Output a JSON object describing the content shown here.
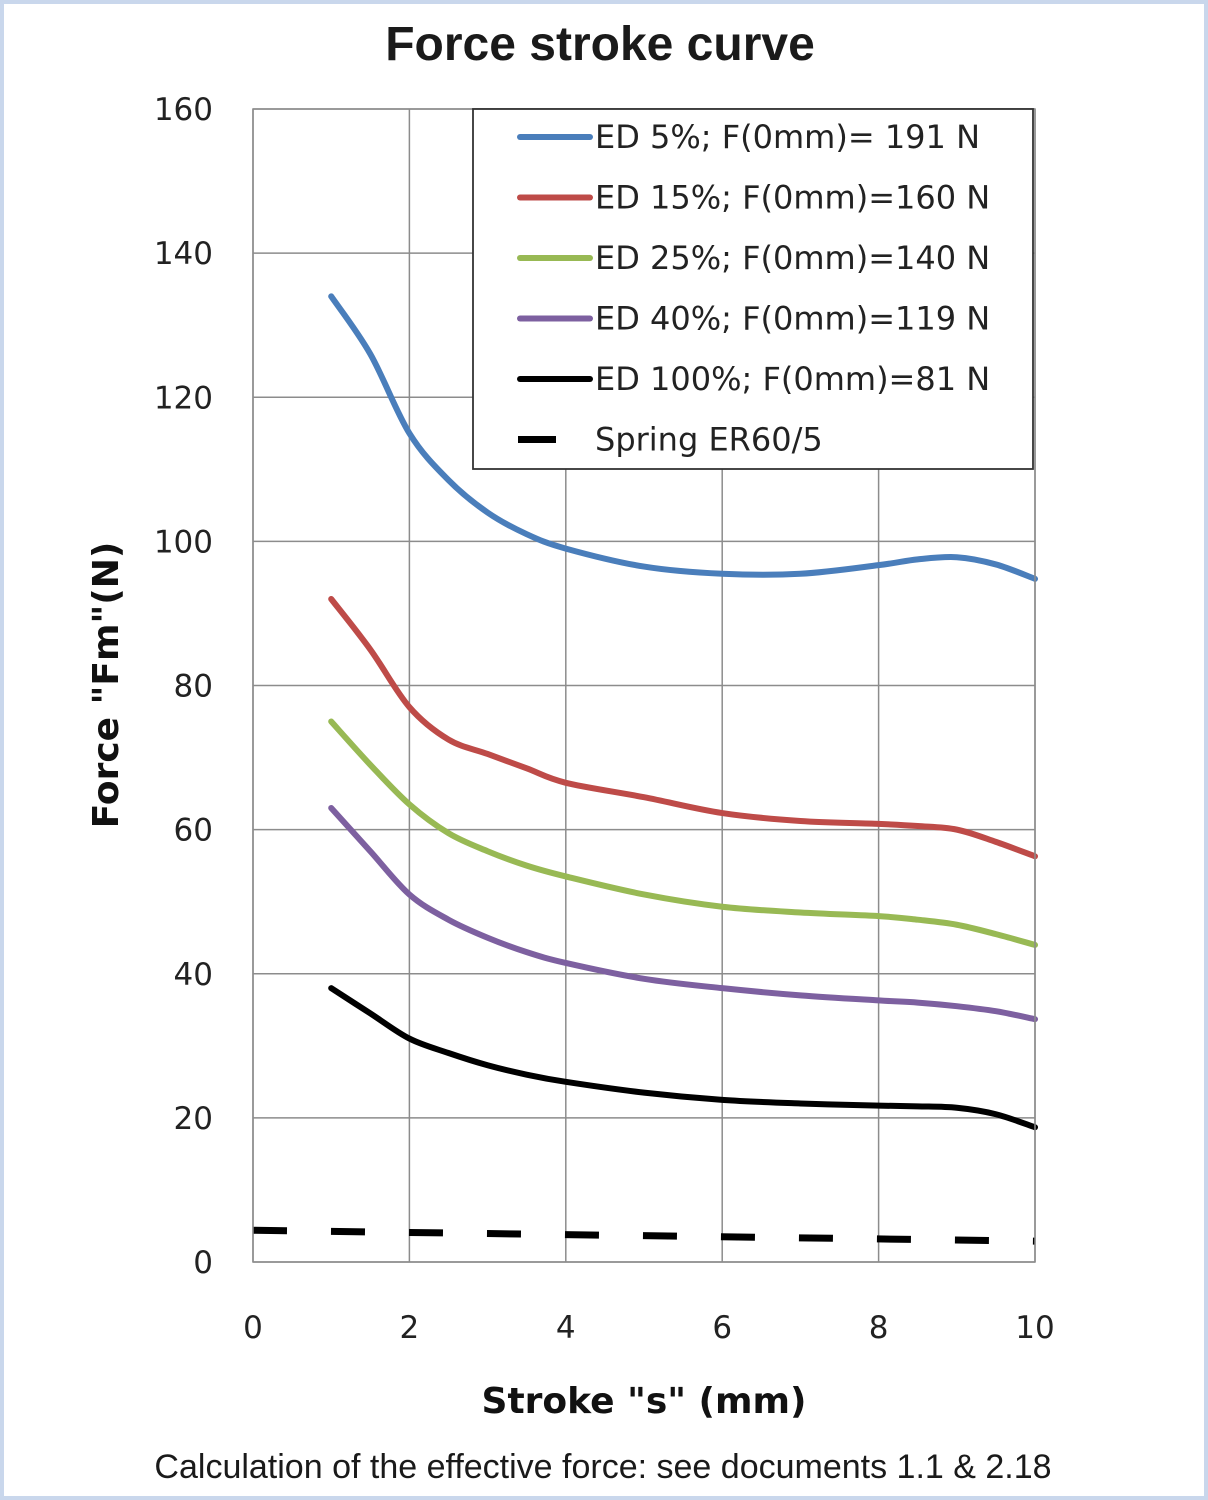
{
  "footnote": "Calculation of the effective force: see documents 1.1 & 2.18",
  "chart_data": {
    "type": "line",
    "title": "Force stroke curve",
    "xlabel": "Stroke \"s\" (mm)",
    "ylabel": "Force  \"Fm\"(N)",
    "xlim": [
      0,
      10
    ],
    "ylim": [
      0,
      160
    ],
    "xticks": [
      0,
      2,
      4,
      6,
      8,
      10
    ],
    "yticks": [
      0,
      20,
      40,
      60,
      80,
      100,
      120,
      140,
      160
    ],
    "grid": true,
    "legend_position": "top-right",
    "series": [
      {
        "name": "ED 5%; F(0mm)= 191 N",
        "color": "#4a7ebb",
        "style": "solid",
        "points": [
          [
            1,
            134
          ],
          [
            1.5,
            126
          ],
          [
            2,
            115
          ],
          [
            2.5,
            108.5
          ],
          [
            3,
            104
          ],
          [
            3.5,
            101
          ],
          [
            4,
            99
          ],
          [
            5,
            96.5
          ],
          [
            6,
            95.5
          ],
          [
            7,
            95.5
          ],
          [
            8,
            96.7
          ],
          [
            8.5,
            97.5
          ],
          [
            9,
            97.8
          ],
          [
            9.5,
            96.8
          ],
          [
            10,
            94.8
          ]
        ]
      },
      {
        "name": "ED 15%; F(0mm)=160 N",
        "color": "#be4b48",
        "style": "solid",
        "points": [
          [
            1,
            92
          ],
          [
            1.5,
            85
          ],
          [
            2,
            77
          ],
          [
            2.5,
            72.5
          ],
          [
            3,
            70.5
          ],
          [
            3.5,
            68.5
          ],
          [
            4,
            66.5
          ],
          [
            5,
            64.5
          ],
          [
            6,
            62.3
          ],
          [
            7,
            61.2
          ],
          [
            8,
            60.8
          ],
          [
            8.5,
            60.5
          ],
          [
            9,
            60
          ],
          [
            9.5,
            58.3
          ],
          [
            10,
            56.3
          ]
        ]
      },
      {
        "name": "ED 25%; F(0mm)=140 N",
        "color": "#98b954",
        "style": "solid",
        "points": [
          [
            1,
            75
          ],
          [
            1.5,
            69
          ],
          [
            2,
            63.5
          ],
          [
            2.5,
            59.5
          ],
          [
            3,
            57
          ],
          [
            3.5,
            55
          ],
          [
            4,
            53.5
          ],
          [
            5,
            51
          ],
          [
            6,
            49.3
          ],
          [
            7,
            48.5
          ],
          [
            8,
            48
          ],
          [
            8.5,
            47.5
          ],
          [
            9,
            46.8
          ],
          [
            9.5,
            45.5
          ],
          [
            10,
            44
          ]
        ]
      },
      {
        "name": "ED 40%; F(0mm)=119 N",
        "color": "#7d60a0",
        "style": "solid",
        "points": [
          [
            1,
            63
          ],
          [
            1.5,
            57
          ],
          [
            2,
            51
          ],
          [
            2.5,
            47.5
          ],
          [
            3,
            45
          ],
          [
            3.5,
            43
          ],
          [
            4,
            41.5
          ],
          [
            5,
            39.3
          ],
          [
            6,
            38
          ],
          [
            7,
            37
          ],
          [
            8,
            36.3
          ],
          [
            8.5,
            36
          ],
          [
            9,
            35.5
          ],
          [
            9.5,
            34.8
          ],
          [
            10,
            33.7
          ]
        ]
      },
      {
        "name": "ED 100%; F(0mm)=81 N",
        "color": "#000000",
        "style": "solid",
        "points": [
          [
            1,
            38
          ],
          [
            1.5,
            34.5
          ],
          [
            2,
            31
          ],
          [
            2.5,
            29
          ],
          [
            3,
            27.3
          ],
          [
            3.5,
            26
          ],
          [
            4,
            25
          ],
          [
            5,
            23.5
          ],
          [
            6,
            22.5
          ],
          [
            7,
            22
          ],
          [
            8,
            21.7
          ],
          [
            8.5,
            21.6
          ],
          [
            9,
            21.4
          ],
          [
            9.5,
            20.5
          ],
          [
            10,
            18.7
          ]
        ]
      },
      {
        "name": "Spring ER60/5",
        "color": "#000000",
        "style": "dashed",
        "points": [
          [
            0,
            4.4
          ],
          [
            10,
            2.9
          ]
        ]
      }
    ]
  }
}
